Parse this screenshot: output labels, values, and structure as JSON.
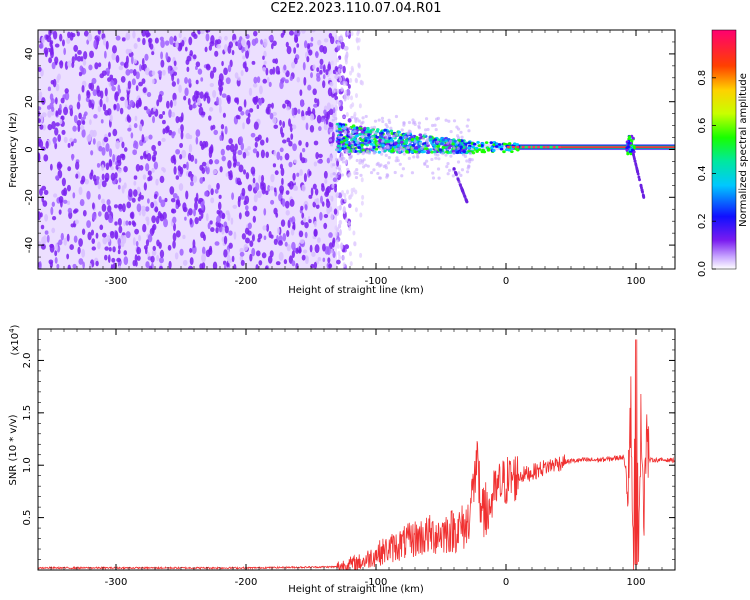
{
  "title": "C2E2.2023.110.07.04.R01",
  "colors": {
    "snr_line": "#f03030",
    "spectral_band": "#d5c2ff",
    "spectral_dots": "#7a20f0"
  },
  "chart_data": [
    {
      "type": "heatmap",
      "xlabel": "Height of straight line (km)",
      "ylabel": "Frequency (Hz)",
      "xlim": [
        -360,
        130
      ],
      "ylim": [
        -50,
        50
      ],
      "x_ticks": [
        -300,
        -200,
        -100,
        0,
        100
      ],
      "x_tick_labels": [
        "-300",
        "-200",
        "-100",
        "0",
        "100"
      ],
      "y_ticks": [
        -40,
        -20,
        0,
        20,
        40
      ],
      "y_tick_labels": [
        "-40",
        "-20",
        "0",
        "20",
        "40"
      ],
      "colorbar": {
        "label": "Normalized spectral amplitude",
        "range": [
          0,
          1
        ],
        "ticks": [
          0.0,
          0.2,
          0.4,
          0.6,
          0.8
        ],
        "tick_labels": [
          "0.0",
          "0.2",
          "0.4",
          "0.6",
          "0.8"
        ],
        "colormap": "rainbow"
      },
      "noise_region": {
        "x_start": -360,
        "x_end": -130,
        "amplitude": 0.15
      },
      "signal_band": {
        "x_start": 0,
        "x_end": 130,
        "frequency": 1,
        "amplitude": 0.95
      }
    },
    {
      "type": "line",
      "xlabel": "Height of straight line (km)",
      "ylabel": "SNR (10 * v/v)",
      "y_scale_label": "(x10",
      "y_scale_exp": "4",
      "y_scale_close": ")",
      "xlim": [
        -360,
        130
      ],
      "ylim": [
        0,
        2.3
      ],
      "x_ticks": [
        -300,
        -200,
        -100,
        0,
        100
      ],
      "x_tick_labels": [
        "-300",
        "-200",
        "-100",
        "0",
        "100"
      ],
      "y_ticks": [
        0.5,
        1.0,
        1.5,
        2.0
      ],
      "y_tick_labels": [
        "0.5",
        "1.0",
        "1.5",
        "2.0"
      ],
      "series": [
        {
          "x": [
            -360,
            -200,
            -130,
            -110,
            -100,
            -90,
            -80,
            -70,
            -60,
            -50,
            -40,
            -30,
            -25,
            -22,
            -20,
            -15,
            -10,
            -5,
            0,
            10,
            20,
            30,
            40,
            50,
            60,
            70,
            80,
            90,
            94,
            96,
            98,
            100,
            102,
            104,
            106,
            108,
            110,
            120,
            130
          ],
          "y": [
            0.02,
            0.02,
            0.03,
            0.08,
            0.15,
            0.2,
            0.25,
            0.3,
            0.33,
            0.35,
            0.38,
            0.42,
            0.8,
            1.0,
            0.6,
            0.5,
            0.7,
            0.8,
            0.85,
            0.9,
            0.93,
            0.98,
            1.02,
            1.04,
            1.05,
            1.05,
            1.06,
            1.08,
            0.9,
            1.6,
            0.1,
            2.2,
            0.4,
            1.5,
            0.6,
            1.35,
            1.05,
            1.05,
            1.05
          ]
        }
      ]
    }
  ]
}
